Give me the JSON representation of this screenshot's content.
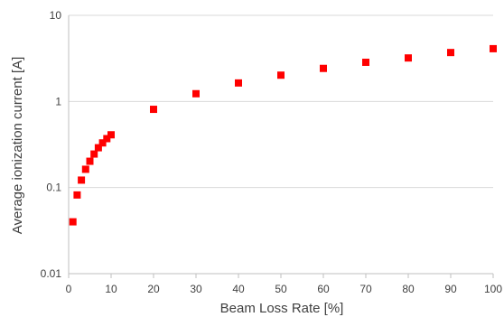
{
  "chart_data": {
    "type": "scatter",
    "xlabel": "Beam Loss Rate [%]",
    "ylabel": "Average ionization current  [A]",
    "xscale": "linear",
    "yscale": "log",
    "xlim": [
      0,
      100
    ],
    "ylim": [
      0.01,
      10
    ],
    "xticks": [
      0,
      10,
      20,
      30,
      40,
      50,
      60,
      70,
      80,
      90,
      100
    ],
    "xtick_labels": [
      "0",
      "10",
      "20",
      "30",
      "40",
      "50",
      "60",
      "70",
      "80",
      "90",
      "100"
    ],
    "yticks": [
      0.01,
      0.1,
      1,
      10
    ],
    "ytick_labels": [
      "0.01",
      "0.1",
      "1",
      "10"
    ],
    "grid": "horizontal major",
    "legend": "none",
    "marker": "square",
    "marker_color": "#ff0000",
    "series": [
      {
        "x": [
          1,
          2,
          3,
          4,
          5,
          6,
          7,
          8,
          9,
          10,
          20,
          30,
          40,
          50,
          60,
          70,
          80,
          90,
          100
        ],
        "y": [
          0.04,
          0.082,
          0.122,
          0.163,
          0.202,
          0.245,
          0.29,
          0.33,
          0.37,
          0.41,
          0.81,
          1.23,
          1.64,
          2.02,
          2.42,
          2.85,
          3.2,
          3.7,
          4.1
        ]
      }
    ]
  }
}
